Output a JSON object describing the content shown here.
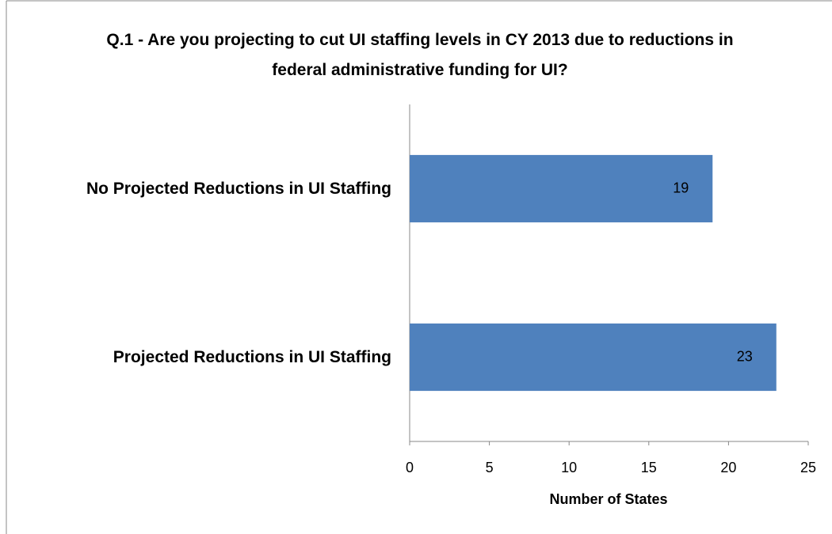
{
  "chart_data": {
    "type": "bar",
    "orientation": "horizontal",
    "title": "Q.1 - Are you projecting to cut UI staffing levels in CY 2013 due to reductions in federal administrative funding for UI?",
    "categories": [
      "No Projected Reductions in UI Staffing",
      "Projected Reductions in UI Staffing"
    ],
    "values": [
      19,
      23
    ],
    "color": "#4f81bd",
    "xlabel": "Number of States",
    "xlim": [
      0,
      25
    ],
    "xticks": [
      0,
      5,
      10,
      15,
      20,
      25
    ],
    "grid": false
  }
}
